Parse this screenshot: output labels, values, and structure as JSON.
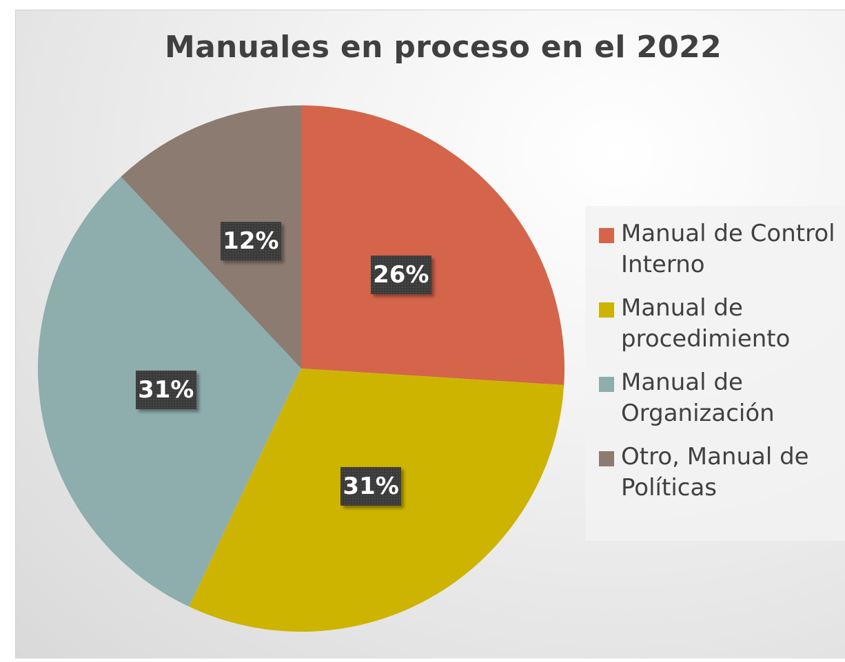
{
  "chart_data": {
    "type": "pie",
    "title": "Manuales en proceso en el 2022",
    "categories": [
      "Manual de Control Interno",
      "Manual de procedimiento",
      "Manual de Organización",
      "Otro, Manual de Políticas"
    ],
    "values": [
      26,
      31,
      31,
      12
    ],
    "data_labels": [
      "26%",
      "31%",
      "31%",
      "12%"
    ],
    "colors": [
      "#d4654a",
      "#cdb400",
      "#8eadad",
      "#8c7b70"
    ],
    "legend_position": "right",
    "legend_labels": [
      "Manual de Control\nInterno",
      "Manual de\nprocedimiento",
      "Manual de\nOrganización",
      "Otro, Manual de\nPolíticas"
    ]
  }
}
